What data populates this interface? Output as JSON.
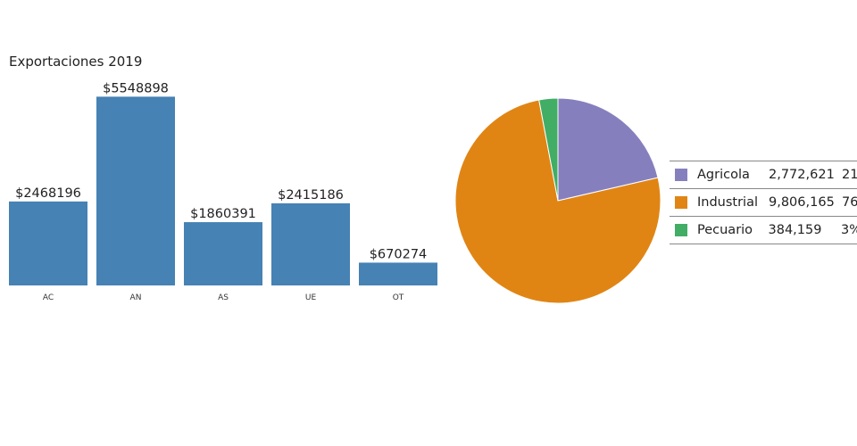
{
  "chart_data": [
    {
      "type": "bar",
      "title": "Exportaciones 2019",
      "categories": [
        "AC",
        "AN",
        "AS",
        "UE",
        "OT"
      ],
      "values": [
        2468196,
        5548898,
        1860391,
        2415186,
        670274
      ],
      "data_labels": [
        "$2468196",
        "$5548898",
        "$1860391",
        "$2415186",
        "$670274"
      ],
      "color": "#4682b4",
      "ylim": [
        0,
        5900000
      ],
      "grid": false
    },
    {
      "type": "pie",
      "labels": [
        "Agricola",
        "Industrial",
        "Pecuario"
      ],
      "values": [
        2772621,
        9806165,
        384159
      ],
      "value_labels": [
        "2,772,621",
        "9,806,165",
        "384,159"
      ],
      "percent_labels": [
        "21",
        "76",
        "3%"
      ],
      "colors": [
        "#8580bd",
        "#e08514",
        "#41ad65"
      ],
      "legend_position": "right"
    }
  ]
}
